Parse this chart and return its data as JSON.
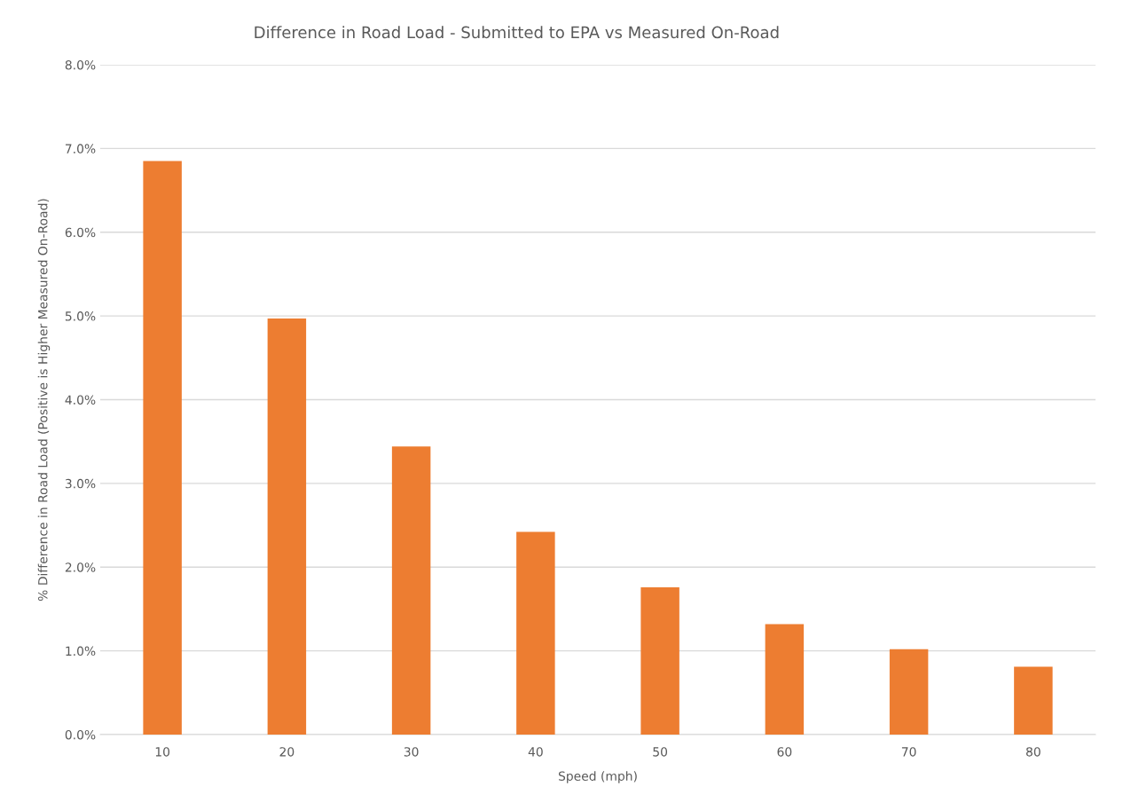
{
  "chart_data": {
    "type": "bar",
    "title": "Difference in Road Load - Submitted to EPA vs Measured On-Road",
    "xlabel": "Speed (mph)",
    "ylabel": "% Difference in Road Load (Positive is Higher Measured On-Road)",
    "categories": [
      "10",
      "20",
      "30",
      "40",
      "50",
      "60",
      "70",
      "80"
    ],
    "values": [
      6.85,
      4.97,
      3.44,
      2.42,
      1.76,
      1.32,
      1.02,
      0.81
    ],
    "color": "#ed7d31",
    "ylim": [
      0,
      8
    ],
    "yticks": [
      {
        "value": 0,
        "label": "0.0%"
      },
      {
        "value": 1,
        "label": "1.0%"
      },
      {
        "value": 2,
        "label": "2.0%"
      },
      {
        "value": 3,
        "label": "3.0%"
      },
      {
        "value": 4,
        "label": "4.0%"
      },
      {
        "value": 5,
        "label": "5.0%"
      },
      {
        "value": 6,
        "label": "6.0%"
      },
      {
        "value": 7,
        "label": "7.0%"
      },
      {
        "value": 8,
        "label": "8.0%"
      }
    ],
    "grid": "y"
  }
}
